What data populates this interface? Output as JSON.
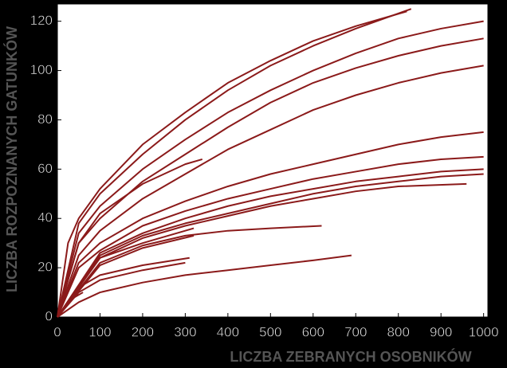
{
  "chart_data": {
    "type": "line",
    "xlabel": "LICZBA ZEBRANYCH OSOBNIKÓW",
    "ylabel": "LICZBA ROZPOZNANYCH GATUNKÓW",
    "xlim": [
      0,
      1010
    ],
    "ylim": [
      0,
      127
    ],
    "xticks": [
      0,
      100,
      200,
      300,
      400,
      500,
      600,
      700,
      800,
      900,
      1000
    ],
    "yticks": [
      0,
      20,
      40,
      60,
      80,
      100,
      120
    ],
    "color": "#8b1a1a",
    "series": [
      {
        "x": [
          0,
          25,
          50,
          100,
          200,
          300,
          400,
          500,
          600,
          700,
          820
        ],
        "values": [
          0,
          30,
          40,
          52,
          70,
          83,
          95,
          104,
          112,
          118,
          124
        ]
      },
      {
        "x": [
          0,
          50,
          100,
          200,
          300,
          400,
          500,
          600,
          700,
          830
        ],
        "values": [
          0,
          38,
          50,
          66,
          80,
          92,
          102,
          110,
          117,
          125
        ]
      },
      {
        "x": [
          0,
          50,
          100,
          200,
          300,
          400,
          500,
          600,
          700,
          800,
          900,
          1000
        ],
        "values": [
          0,
          34,
          45,
          60,
          72,
          83,
          92,
          100,
          107,
          113,
          117,
          120
        ]
      },
      {
        "x": [
          0,
          50,
          100,
          200,
          300,
          400,
          500,
          600,
          700,
          800,
          900,
          1000
        ],
        "values": [
          0,
          30,
          40,
          55,
          66,
          77,
          87,
          95,
          101,
          106,
          110,
          113
        ]
      },
      {
        "x": [
          0,
          50,
          100,
          200,
          300,
          400,
          500,
          600,
          700,
          800,
          900,
          1000
        ],
        "values": [
          0,
          25,
          35,
          48,
          58,
          68,
          76,
          84,
          90,
          95,
          99,
          102
        ]
      },
      {
        "x": [
          0,
          50,
          100,
          200,
          300,
          340
        ],
        "values": [
          0,
          30,
          42,
          54,
          62,
          64
        ]
      },
      {
        "x": [
          0,
          50,
          100,
          200,
          300,
          400,
          500,
          600,
          700,
          800,
          900,
          1000
        ],
        "values": [
          0,
          22,
          30,
          40,
          47,
          53,
          58,
          62,
          66,
          70,
          73,
          75
        ]
      },
      {
        "x": [
          0,
          50,
          100,
          200,
          300,
          400,
          500,
          600,
          700,
          800,
          900,
          1000
        ],
        "values": [
          0,
          20,
          27,
          37,
          43,
          48,
          52,
          56,
          59,
          62,
          64,
          65
        ]
      },
      {
        "x": [
          0,
          100,
          200,
          300,
          400,
          500,
          600,
          700,
          800,
          900,
          1000
        ],
        "values": [
          0,
          26,
          34,
          40,
          45,
          49,
          52,
          55,
          57,
          59,
          60
        ]
      },
      {
        "x": [
          0,
          100,
          200,
          300,
          400,
          500,
          600,
          700,
          800,
          900,
          1000
        ],
        "values": [
          0,
          25,
          33,
          38,
          42,
          46,
          50,
          53,
          55,
          57,
          58
        ]
      },
      {
        "x": [
          0,
          100,
          200,
          300,
          400,
          500,
          600,
          700,
          800,
          960
        ],
        "values": [
          0,
          24,
          32,
          37,
          41,
          45,
          48,
          51,
          53,
          54
        ]
      },
      {
        "x": [
          0,
          100,
          200,
          300,
          400,
          500,
          620
        ],
        "values": [
          0,
          22,
          29,
          33,
          35,
          36,
          37
        ]
      },
      {
        "x": [
          0,
          100,
          200,
          320
        ],
        "values": [
          0,
          24,
          30,
          36
        ]
      },
      {
        "x": [
          0,
          100,
          200,
          320
        ],
        "values": [
          0,
          21,
          28,
          33
        ]
      },
      {
        "x": [
          0,
          50,
          100,
          200,
          310
        ],
        "values": [
          0,
          12,
          17,
          21,
          24
        ]
      },
      {
        "x": [
          0,
          50,
          100,
          200,
          300
        ],
        "values": [
          0,
          10,
          15,
          19,
          22
        ]
      },
      {
        "x": [
          0,
          50,
          100,
          200,
          300,
          400,
          500,
          600,
          690
        ],
        "values": [
          0,
          6,
          10,
          14,
          17,
          19,
          21,
          23,
          25
        ]
      },
      {
        "x": [
          0,
          30,
          60
        ],
        "values": [
          0,
          7,
          10
        ]
      }
    ]
  }
}
